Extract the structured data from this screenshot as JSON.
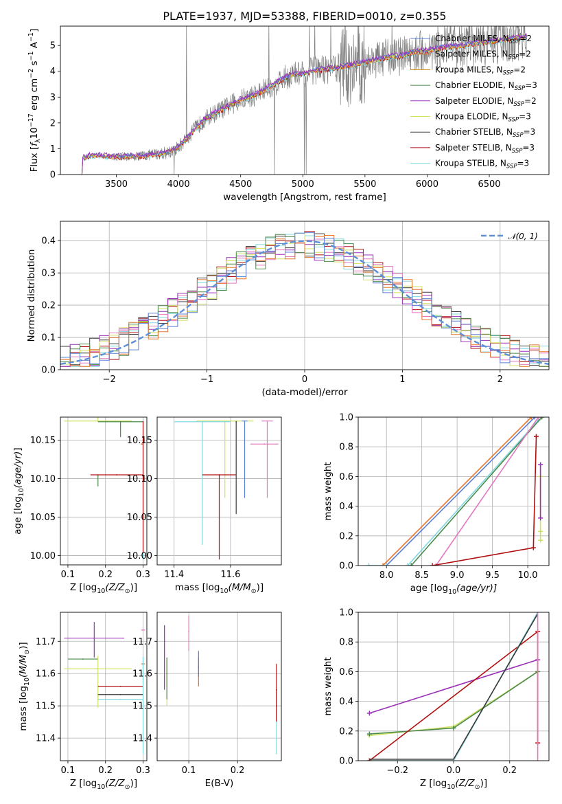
{
  "title": "PLATE=1937, MJD=53388, FIBERID=0010, z=0.355",
  "colors": {
    "chabrier_miles": "#5b7fd6",
    "salpeter_miles": "#e8742b",
    "kroupa_miles": "#c8860a",
    "chabrier_elodie": "#4a8a4a",
    "salpeter_elodie": "#9b30b8",
    "kroupa_elodie": "#d0e060",
    "chabrier_stelib": "#3a3a3a",
    "salpeter_stelib": "#b01010",
    "kroupa_stelib": "#80d8e0",
    "data": "#7f7f7f",
    "pink": "#e377c2",
    "gaussian": "#5b8fd6"
  },
  "chart_data": [
    {
      "id": "spectrum",
      "type": "line",
      "xlabel": "wavelength [Angstrom, rest frame]",
      "xlim": [
        3050,
        6980
      ],
      "ylim": [
        0,
        5.75
      ],
      "xticks": [
        "3500",
        "4000",
        "4500",
        "5000",
        "5500",
        "6000",
        "6500"
      ],
      "yticks": [
        "0",
        "1",
        "2",
        "3",
        "4",
        "5"
      ],
      "legend_position": "top-right",
      "legend": [
        {
          "base": "Chabrier MILES, N",
          "sub": "SSP",
          "tail": "=2",
          "color_key": "chabrier_miles"
        },
        {
          "base": "Salpeter MILES, N",
          "sub": "SSP",
          "tail": "=2",
          "color_key": "salpeter_miles"
        },
        {
          "base": "Kroupa MILES, N",
          "sub": "SSP",
          "tail": "=2",
          "color_key": "kroupa_miles"
        },
        {
          "base": "Chabrier ELODIE, N",
          "sub": "SSP",
          "tail": "=3",
          "color_key": "chabrier_elodie"
        },
        {
          "base": "Salpeter ELODIE, N",
          "sub": "SSP",
          "tail": "=2",
          "color_key": "salpeter_elodie"
        },
        {
          "base": "Kroupa ELODIE, N",
          "sub": "SSP",
          "tail": "=3",
          "color_key": "kroupa_elodie"
        },
        {
          "base": "Chabrier STELIB, N",
          "sub": "SSP",
          "tail": "=3",
          "color_key": "chabrier_stelib"
        },
        {
          "base": "Salpeter STELIB, N",
          "sub": "SSP",
          "tail": "=3",
          "color_key": "salpeter_stelib"
        },
        {
          "base": "Kroupa STELIB, N",
          "sub": "SSP",
          "tail": "=3",
          "color_key": "kroupa_stelib"
        }
      ],
      "model_envelope": {
        "x": [
          3200,
          3230,
          3300,
          3400,
          3500,
          3600,
          3700,
          3800,
          3900,
          4000,
          4100,
          4200,
          4300,
          4400,
          4500,
          4600,
          4700,
          4800,
          4900,
          5000,
          5100,
          5200,
          5300,
          5400,
          5500,
          5600,
          5700,
          5800,
          5900,
          6000,
          6100,
          6200,
          6300,
          6400,
          6500,
          6600,
          6700,
          6800
        ],
        "y": [
          0.0,
          0.62,
          0.75,
          0.72,
          0.68,
          0.7,
          0.72,
          0.78,
          0.85,
          1.05,
          1.6,
          2.1,
          2.4,
          2.65,
          2.9,
          3.05,
          3.3,
          3.6,
          3.85,
          3.9,
          4.05,
          4.1,
          4.15,
          4.25,
          4.35,
          4.45,
          4.55,
          4.6,
          4.75,
          4.8,
          4.9,
          4.95,
          5.0,
          5.1,
          5.15,
          5.2,
          5.3,
          5.35
        ]
      },
      "data_noise_start": 3500
    },
    {
      "id": "residuals",
      "type": "bar",
      "xlabel": "(data-model)/error",
      "ylabel": "Normed distribution",
      "xlim": [
        -2.5,
        2.5
      ],
      "ylim": [
        0,
        0.46
      ],
      "xticks": [
        "−2",
        "−1",
        "0",
        "1",
        "2"
      ],
      "yticks": [
        "0.0",
        "0.1",
        "0.2",
        "0.3",
        "0.4"
      ],
      "legend": "𝒩(0, 1)",
      "legend_position": "top-right",
      "bin_width": 0.1
    },
    {
      "id": "age_vs_Z",
      "type": "scatter",
      "xlabel_pre": "Z [log",
      "xlabel_sub": "10",
      "xlabel_post": "(Z/Z",
      "xlabel_odot": "⊙",
      "xlabel_end": ")]",
      "ylabel": "age  [log10(age/yr)]",
      "xlim": [
        0.08,
        0.31
      ],
      "ylim": [
        9.988,
        10.18
      ],
      "xticks": [
        "0.1",
        "0.2",
        "0.3"
      ],
      "yticks": [
        "10.00",
        "10.05",
        "10.10",
        "10.15"
      ],
      "points": [
        {
          "x": 0.18,
          "y": 10.175,
          "xerr": 0.09,
          "yerr": [
            0.0,
            0.1
          ],
          "color_key": "kroupa_elodie"
        },
        {
          "x": 0.24,
          "y": 10.174,
          "xerr": 0.06,
          "yerr": [
            0.02,
            0.0
          ],
          "color_key": "chabrier_elodie"
        },
        {
          "x": 0.18,
          "y": 10.105,
          "xerr": 0.0,
          "yerr": [
            0.015,
            0.0
          ],
          "color_key": "chabrier_elodie"
        },
        {
          "x": 0.23,
          "y": 10.105,
          "xerr": 0.07,
          "yerr": [
            0.0,
            0.0
          ],
          "color_key": "salpeter_stelib"
        },
        {
          "x": 0.297,
          "y": 10.145,
          "xerr": 0.003,
          "yerr": [
            0.0,
            0.0
          ],
          "color_key": "salpeter_miles"
        },
        {
          "x": 0.3,
          "y": 10.175,
          "xerr": 0.0,
          "yerr": [
            0.18,
            0.0
          ],
          "color_key": "kroupa_stelib"
        },
        {
          "x": 0.3,
          "y": 10.174,
          "xerr": 0.0,
          "yerr": [
            0.17,
            0.0
          ],
          "color_key": "salpeter_stelib"
        }
      ]
    },
    {
      "id": "age_vs_mass",
      "type": "scatter",
      "xlabel_pre": "mass [log",
      "xlabel_sub": "10",
      "xlabel_post": "(M/M",
      "xlabel_odot": "⊙",
      "xlabel_end": ")]",
      "xlim": [
        11.34,
        11.78
      ],
      "ylim": [
        9.988,
        10.18
      ],
      "xticks": [
        "11.4",
        "11.6"
      ],
      "yticks": [
        "10.00",
        "10.05",
        "10.10",
        "10.15"
      ],
      "points": [
        {
          "x": 11.58,
          "y": 10.175,
          "xerr": 0.1,
          "yerr": [
            0.1,
            0.0
          ],
          "color_key": "kroupa_elodie"
        },
        {
          "x": 11.5,
          "y": 10.174,
          "xerr": 0.1,
          "yerr": [
            0.16,
            0.0
          ],
          "color_key": "kroupa_stelib"
        },
        {
          "x": 11.56,
          "y": 10.105,
          "xerr": 0.06,
          "yerr": [
            0.11,
            0.0
          ],
          "color_key": "salpeter_stelib"
        },
        {
          "x": 11.65,
          "y": 10.175,
          "xerr": 0.01,
          "yerr": [
            0.1,
            0.0
          ],
          "color_key": "chabrier_miles"
        },
        {
          "x": 11.72,
          "y": 10.145,
          "xerr": 0.05,
          "yerr": [
            0.0,
            0.0
          ],
          "color_key": "pink"
        },
        {
          "x": 11.73,
          "y": 10.175,
          "xerr": 0.02,
          "yerr": [
            0.1,
            0.0
          ],
          "color_key": "pink"
        },
        {
          "x": 11.62,
          "y": 10.174,
          "xerr": 0.0,
          "yerr": [
            0.12,
            0.0
          ],
          "color_key": "chabrier_stelib"
        }
      ]
    },
    {
      "id": "mass_weight_vs_age",
      "type": "line",
      "xlabel_pre": "age  [log",
      "xlabel_sub": "10",
      "xlabel_post": "(age/yr)]",
      "ylabel": "mass weight",
      "xlim": [
        7.6,
        10.3
      ],
      "ylim": [
        0,
        1.0
      ],
      "xticks": [
        "8.0",
        "8.5",
        "9.0",
        "9.5",
        "10.0"
      ],
      "yticks": [
        "0.0",
        "0.2",
        "0.4",
        "0.6",
        "0.8",
        "1.0"
      ],
      "series": [
        {
          "color_key": "salpeter_miles",
          "x": [
            7.95,
            10.05
          ],
          "y": [
            0.0,
            1.0
          ]
        },
        {
          "color_key": "chabrier_miles",
          "x": [
            8.0,
            10.1
          ],
          "y": [
            0.0,
            1.0
          ]
        },
        {
          "color_key": "kroupa_stelib",
          "x": [
            8.3,
            10.15
          ],
          "y": [
            0.0,
            0.98
          ]
        },
        {
          "color_key": "chabrier_elodie",
          "x": [
            8.35,
            10.2
          ],
          "y": [
            0.0,
            1.0
          ]
        },
        {
          "color_key": "pink",
          "x": [
            8.7,
            10.15
          ],
          "y": [
            0.0,
            1.0
          ]
        },
        {
          "color_key": "salpeter_stelib",
          "x": [
            8.65,
            10.08,
            10.12
          ],
          "y": [
            0.0,
            0.12,
            0.87
          ]
        },
        {
          "color_key": "kroupa_elodie",
          "x": [
            10.18,
            10.18,
            10.18
          ],
          "y": [
            0.17,
            0.23,
            0.6
          ]
        },
        {
          "color_key": "salpeter_elodie",
          "x": [
            10.18,
            10.18
          ],
          "y": [
            0.32,
            0.68
          ]
        },
        {
          "color_key": "kroupa_stelib",
          "x": [
            7.75,
            8.0
          ],
          "y": [
            0.0,
            0.0
          ]
        }
      ]
    },
    {
      "id": "mass_vs_Z",
      "type": "scatter",
      "xlabel_pre": "Z [log",
      "xlabel_sub": "10",
      "xlabel_post": "(Z/Z",
      "xlabel_odot": "⊙",
      "xlabel_end": ")]",
      "ylabel": "mass [log10(M/M⊙)]",
      "xlim": [
        0.08,
        0.31
      ],
      "ylim": [
        11.33,
        11.79
      ],
      "xticks": [
        "0.1",
        "0.2",
        "0.3"
      ],
      "yticks": [
        "11.4",
        "11.5",
        "11.6",
        "11.7"
      ],
      "points": [
        {
          "x": 0.17,
          "y": 11.71,
          "xerr": 0.08,
          "yerr": [
            0.06,
            0.05
          ],
          "color_key": "salpeter_elodie"
        },
        {
          "x": 0.14,
          "y": 11.645,
          "xerr": 0.04,
          "yerr": [
            0.0,
            0.0
          ],
          "color_key": "chabrier_elodie"
        },
        {
          "x": 0.18,
          "y": 11.615,
          "xerr": 0.09,
          "yerr": [
            0.12,
            0.04
          ],
          "color_key": "kroupa_elodie"
        },
        {
          "x": 0.24,
          "y": 11.56,
          "xerr": 0.06,
          "yerr": [
            0.0,
            0.0
          ],
          "color_key": "salpeter_stelib"
        },
        {
          "x": 0.24,
          "y": 11.535,
          "xerr": 0.06,
          "yerr": [
            0.0,
            0.0
          ],
          "color_key": "chabrier_stelib"
        },
        {
          "x": 0.24,
          "y": 11.52,
          "xerr": 0.06,
          "yerr": [
            0.0,
            0.0
          ],
          "color_key": "kroupa_stelib"
        },
        {
          "x": 0.3,
          "y": 11.735,
          "xerr": 0.005,
          "yerr": [
            0.0,
            0.0
          ],
          "color_key": "pink"
        },
        {
          "x": 0.3,
          "y": 11.63,
          "xerr": 0.005,
          "yerr": [
            0.06,
            0.02
          ],
          "color_key": "salpeter_miles"
        },
        {
          "x": 0.3,
          "y": 11.65,
          "xerr": 0.0,
          "yerr": [
            0.3,
            0.0
          ],
          "color_key": "kroupa_stelib"
        }
      ]
    },
    {
      "id": "mass_vs_ebv",
      "type": "scatter",
      "xlabel": "E(B-V)",
      "xlim": [
        0.035,
        0.29
      ],
      "ylim": [
        11.33,
        11.79
      ],
      "xticks": [
        "0.1",
        "0.2"
      ],
      "yticks": [
        "11.4",
        "11.5",
        "11.6",
        "11.7"
      ],
      "points": [
        {
          "x": 0.05,
          "y": 11.7,
          "xerr": 0.0,
          "yerr": [
            0.15,
            0.05
          ],
          "color_key": "salpeter_elodie"
        },
        {
          "x": 0.055,
          "y": 11.6,
          "xerr": 0.0,
          "yerr": [
            0.1,
            0.05
          ],
          "color_key": "kroupa_elodie"
        },
        {
          "x": 0.055,
          "y": 11.6,
          "xerr": 0.0,
          "yerr": [
            0.08,
            0.05
          ],
          "color_key": "chabrier_elodie"
        },
        {
          "x": 0.1,
          "y": 11.73,
          "xerr": 0.0,
          "yerr": [
            0.06,
            0.05
          ],
          "color_key": "pink"
        },
        {
          "x": 0.12,
          "y": 11.6,
          "xerr": 0.0,
          "yerr": [
            0.04,
            0.05
          ],
          "color_key": "salpeter_miles"
        },
        {
          "x": 0.12,
          "y": 11.62,
          "xerr": 0.0,
          "yerr": [
            0.03,
            0.05
          ],
          "color_key": "chabrier_miles"
        },
        {
          "x": 0.28,
          "y": 11.5,
          "xerr": 0.0,
          "yerr": [
            0.05,
            0.05
          ],
          "color_key": "chabrier_stelib"
        },
        {
          "x": 0.28,
          "y": 11.55,
          "xerr": 0.0,
          "yerr": [
            0.1,
            0.08
          ],
          "color_key": "salpeter_stelib"
        },
        {
          "x": 0.28,
          "y": 11.45,
          "xerr": 0.0,
          "yerr": [
            0.1,
            0.0
          ],
          "color_key": "kroupa_stelib"
        }
      ]
    },
    {
      "id": "mass_weight_vs_Z",
      "type": "line",
      "xlabel_pre": "Z [log",
      "xlabel_sub": "10",
      "xlabel_post": "(Z/Z",
      "xlabel_odot": "⊙",
      "xlabel_end": ")]",
      "ylabel": "mass weight",
      "xlim": [
        -0.34,
        0.34
      ],
      "ylim": [
        0,
        1.0
      ],
      "xticks": [
        "−0.2",
        "0.0",
        "0.2"
      ],
      "yticks": [
        "0.0",
        "0.2",
        "0.4",
        "0.6",
        "0.8",
        "1.0"
      ],
      "series": [
        {
          "color_key": "salpeter_elodie",
          "x": [
            -0.3,
            0.3
          ],
          "y": [
            0.32,
            0.68
          ],
          "markers": true
        },
        {
          "color_key": "kroupa_elodie",
          "x": [
            -0.3,
            0.0,
            0.3
          ],
          "y": [
            0.17,
            0.23,
            0.6
          ],
          "markers": true
        },
        {
          "color_key": "chabrier_elodie",
          "x": [
            -0.3,
            0.0,
            0.3
          ],
          "y": [
            0.18,
            0.22,
            0.6
          ],
          "markers": true
        },
        {
          "color_key": "salpeter_stelib",
          "x": [
            -0.3,
            0.3,
            0.3
          ],
          "y": [
            0.0,
            0.87,
            0.12
          ],
          "markers": true
        },
        {
          "color_key": "kroupa_stelib",
          "x": [
            -0.3,
            0.0,
            0.3
          ],
          "y": [
            0.0,
            0.0,
            1.0
          ],
          "markers": false
        },
        {
          "color_key": "chabrier_stelib",
          "x": [
            -0.3,
            0.0,
            0.3
          ],
          "y": [
            0.01,
            0.01,
            0.99
          ],
          "markers": false
        },
        {
          "color_key": "pink",
          "x": [
            0.3,
            0.3
          ],
          "y": [
            0.0,
            1.0
          ],
          "markers": false
        }
      ]
    }
  ]
}
